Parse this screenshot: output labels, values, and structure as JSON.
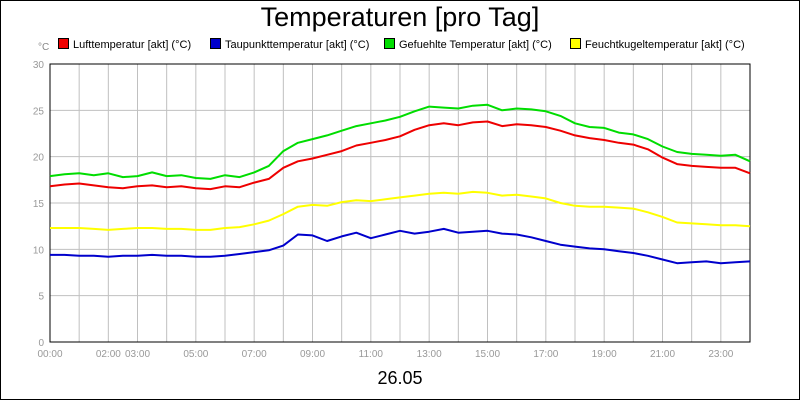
{
  "chart_data": {
    "type": "line",
    "title": "Temperaturen [pro Tag]",
    "y_unit": "°C",
    "xlabel_date": "26.05",
    "ylim": [
      0,
      30
    ],
    "yticks": [
      0,
      5,
      10,
      15,
      20,
      25,
      30
    ],
    "xlim": [
      0,
      24
    ],
    "xticks": [
      {
        "pos": 0,
        "label": "00:00"
      },
      {
        "pos": 2,
        "label": "02:00"
      },
      {
        "pos": 3,
        "label": "03:00"
      },
      {
        "pos": 5,
        "label": "05:00"
      },
      {
        "pos": 7,
        "label": "07:00"
      },
      {
        "pos": 9,
        "label": "09:00"
      },
      {
        "pos": 11,
        "label": "11:00"
      },
      {
        "pos": 13,
        "label": "13:00"
      },
      {
        "pos": 15,
        "label": "15:00"
      },
      {
        "pos": 17,
        "label": "17:00"
      },
      {
        "pos": 19,
        "label": "19:00"
      },
      {
        "pos": 21,
        "label": "21:00"
      },
      {
        "pos": 23,
        "label": "23:00"
      }
    ],
    "grid": true,
    "legend_position": "top",
    "x": [
      0,
      0.5,
      1,
      1.5,
      2,
      2.5,
      3,
      3.5,
      4,
      4.5,
      5,
      5.5,
      6,
      6.5,
      7,
      7.5,
      8,
      8.5,
      9,
      9.5,
      10,
      10.5,
      11,
      11.5,
      12,
      12.5,
      13,
      13.5,
      14,
      14.5,
      15,
      15.5,
      16,
      16.5,
      17,
      17.5,
      18,
      18.5,
      19,
      19.5,
      20,
      20.5,
      21,
      21.5,
      22,
      22.5,
      23,
      23.5,
      24
    ],
    "series": [
      {
        "name": "Lufttemperatur [akt] (°C)",
        "color": "#ee0000",
        "values": [
          16.8,
          17.0,
          17.1,
          16.9,
          16.7,
          16.6,
          16.8,
          16.9,
          16.7,
          16.8,
          16.6,
          16.5,
          16.8,
          16.7,
          17.2,
          17.6,
          18.8,
          19.5,
          19.8,
          20.2,
          20.6,
          21.2,
          21.5,
          21.8,
          22.2,
          22.9,
          23.4,
          23.6,
          23.4,
          23.7,
          23.8,
          23.3,
          23.5,
          23.4,
          23.2,
          22.8,
          22.3,
          22.0,
          21.8,
          21.5,
          21.3,
          20.8,
          19.9,
          19.2,
          19.0,
          18.9,
          18.8,
          18.8,
          18.2
        ]
      },
      {
        "name": "Taupunkttemperatur [akt] (°C)",
        "color": "#0000cc",
        "values": [
          9.4,
          9.4,
          9.3,
          9.3,
          9.2,
          9.3,
          9.3,
          9.4,
          9.3,
          9.3,
          9.2,
          9.2,
          9.3,
          9.5,
          9.7,
          9.9,
          10.4,
          11.6,
          11.5,
          10.9,
          11.4,
          11.8,
          11.2,
          11.6,
          12.0,
          11.7,
          11.9,
          12.2,
          11.8,
          11.9,
          12.0,
          11.7,
          11.6,
          11.3,
          10.9,
          10.5,
          10.3,
          10.1,
          10.0,
          9.8,
          9.6,
          9.3,
          8.9,
          8.5,
          8.6,
          8.7,
          8.5,
          8.6,
          8.7
        ]
      },
      {
        "name": "Gefuehlte Temperatur [akt] (°C)",
        "color": "#00dd00",
        "values": [
          17.9,
          18.1,
          18.2,
          18.0,
          18.2,
          17.8,
          17.9,
          18.3,
          17.9,
          18.0,
          17.7,
          17.6,
          18.0,
          17.8,
          18.3,
          19.0,
          20.6,
          21.5,
          21.9,
          22.3,
          22.8,
          23.3,
          23.6,
          23.9,
          24.3,
          24.9,
          25.4,
          25.3,
          25.2,
          25.5,
          25.6,
          25.0,
          25.2,
          25.1,
          24.9,
          24.4,
          23.6,
          23.2,
          23.1,
          22.6,
          22.4,
          21.9,
          21.1,
          20.5,
          20.3,
          20.2,
          20.1,
          20.2,
          19.5
        ]
      },
      {
        "name": "Feuchtkugeltemperatur [akt] (°C)",
        "color": "#ffff00",
        "values": [
          12.3,
          12.3,
          12.3,
          12.2,
          12.1,
          12.2,
          12.3,
          12.3,
          12.2,
          12.2,
          12.1,
          12.1,
          12.3,
          12.4,
          12.7,
          13.1,
          13.8,
          14.6,
          14.8,
          14.7,
          15.1,
          15.3,
          15.2,
          15.4,
          15.6,
          15.8,
          16.0,
          16.1,
          16.0,
          16.2,
          16.1,
          15.8,
          15.9,
          15.7,
          15.5,
          15.0,
          14.7,
          14.6,
          14.6,
          14.5,
          14.4,
          14.0,
          13.5,
          12.9,
          12.8,
          12.7,
          12.6,
          12.6,
          12.5
        ]
      }
    ]
  }
}
